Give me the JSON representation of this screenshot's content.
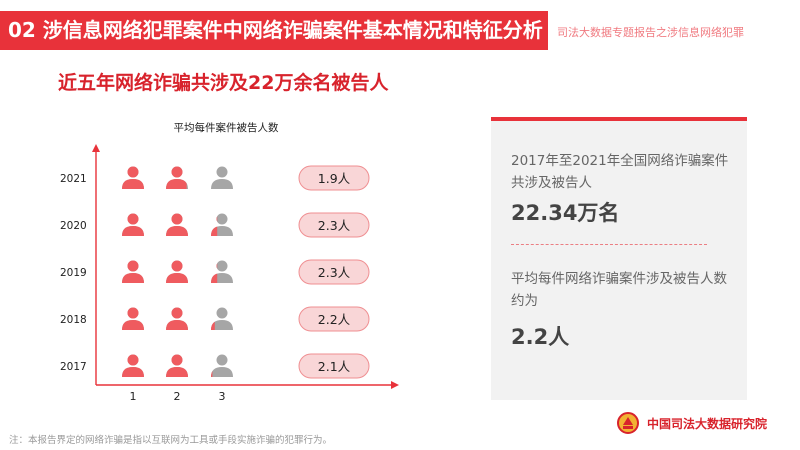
{
  "header": {
    "title": "02  涉信息网络犯罪案件中网络诈骗案件基本情况和特征分析",
    "subtitle": "司法大数据专题报告之涉信息网络犯罪"
  },
  "headline": "近五年网络诈骗共涉及22万余名被告人",
  "chart_data": {
    "type": "pictograph",
    "title": "平均每件案件被告人数",
    "categories": [
      "2021",
      "2020",
      "2019",
      "2018",
      "2017"
    ],
    "values": [
      1.9,
      2.3,
      2.3,
      2.2,
      2.1
    ],
    "value_labels": [
      "1.9人",
      "2.3人",
      "2.3人",
      "2.2人",
      "2.1人"
    ],
    "x_ticks": [
      "1",
      "2",
      "3"
    ],
    "xlim": [
      0,
      3
    ],
    "colors": {
      "filled": "#ef5b5f",
      "empty": "#a6a6a6",
      "pill": "#f9d6d7",
      "pill_border": "#ef8f92"
    }
  },
  "panel": {
    "text1": "2017年至2021年全国网络诈骗案件共涉及被告人",
    "value1": "22.34万名",
    "text2": "平均每件网络诈骗案件涉及被告人数约为",
    "value2": "2.2人"
  },
  "footnote": "注：本报告界定的网络诈骗是指以互联网为工具或手段实施诈骗的犯罪行为。",
  "logo": {
    "text": "中国司法大数据研究院",
    "icon": "court-emblem-icon"
  }
}
